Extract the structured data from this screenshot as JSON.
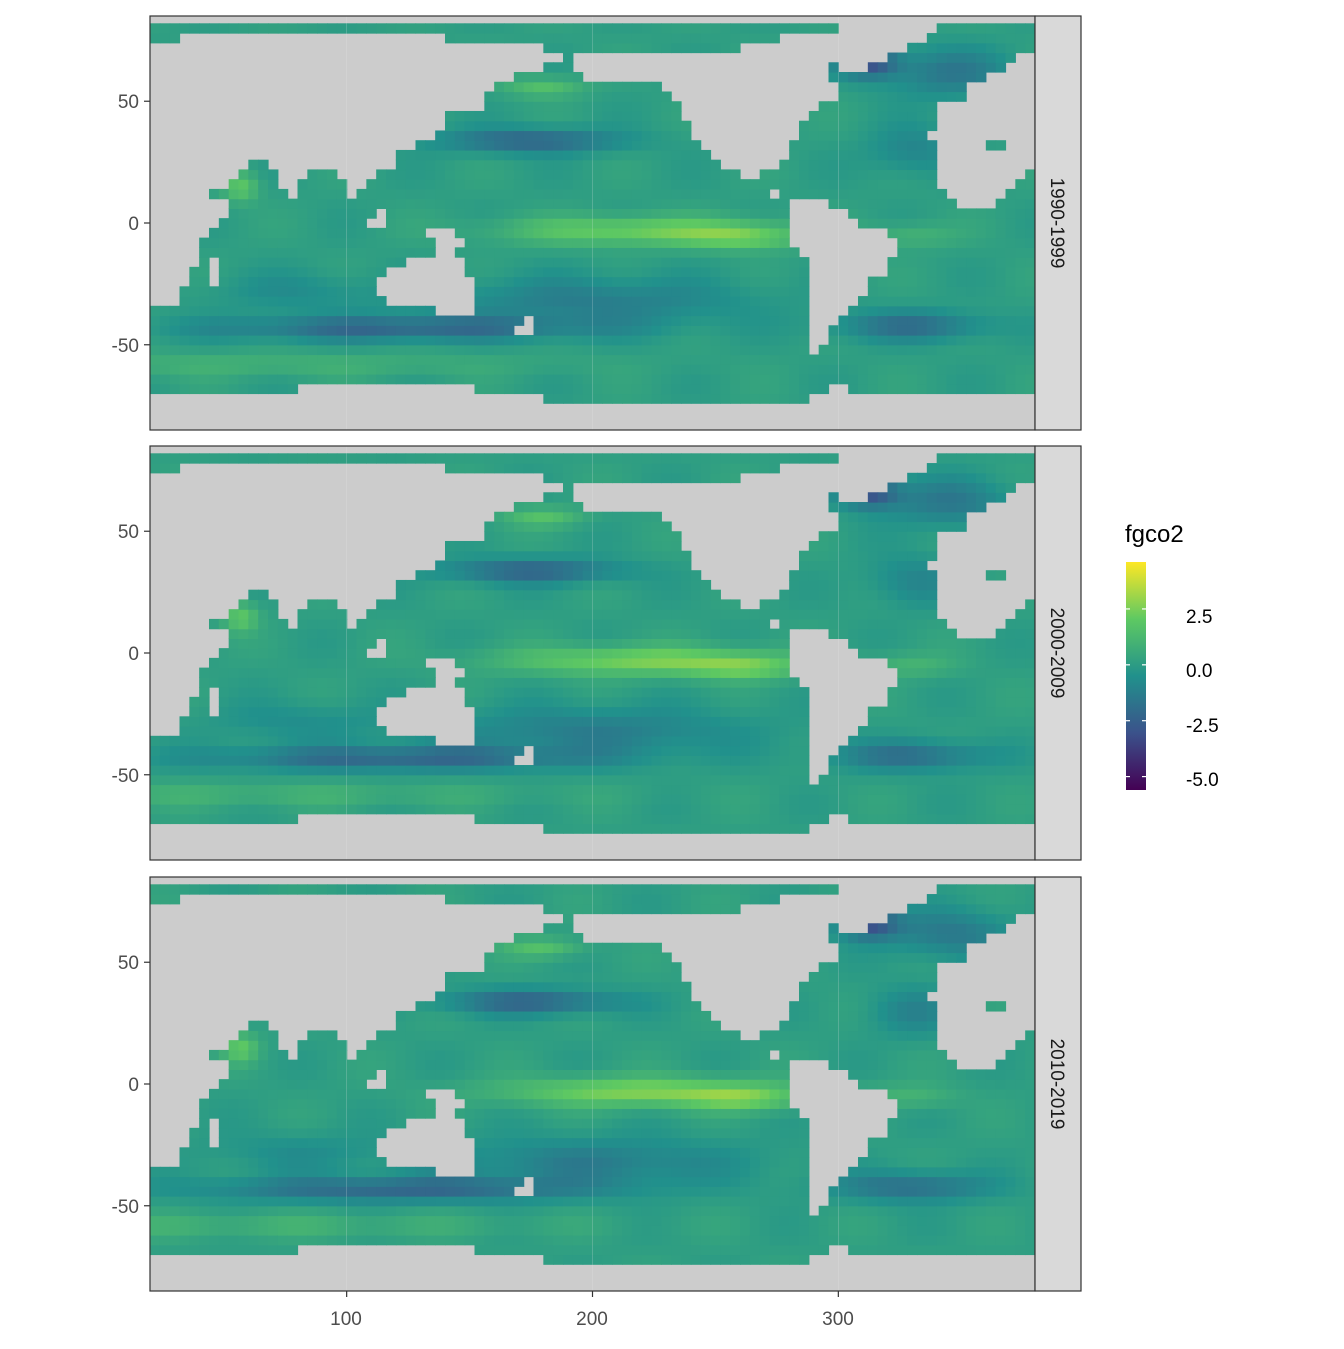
{
  "chart_data": {
    "type": "heatmap",
    "title": "",
    "xlabel": "",
    "ylabel": "",
    "xlim": [
      20,
      380
    ],
    "ylim": [
      -85,
      85
    ],
    "x_ticks": [
      100,
      200,
      300
    ],
    "y_ticks": [
      50,
      0,
      -50
    ],
    "x_tick_labels": [
      "100",
      "200",
      "300"
    ],
    "y_tick_labels": [
      "50",
      "0",
      "-50"
    ],
    "grid": true,
    "facets": [
      "1990-1999",
      "2000-2009",
      "2010-2019"
    ],
    "legend": {
      "title": "fgco2",
      "placement": "right",
      "range": [
        -5.6,
        4.6
      ],
      "breaks": [
        2.5,
        0.0,
        -2.5,
        -5.0
      ],
      "break_labels": [
        "2.5",
        "0.0",
        "-2.5",
        "-5.0"
      ],
      "palette": [
        "#440154",
        "#3b528b",
        "#21918c",
        "#5ec962",
        "#fde725"
      ]
    },
    "colors": {
      "land": "#cccccc",
      "strip": "#d9d9d9",
      "panel_border": "#333333",
      "grid": "#ebebeb"
    }
  }
}
